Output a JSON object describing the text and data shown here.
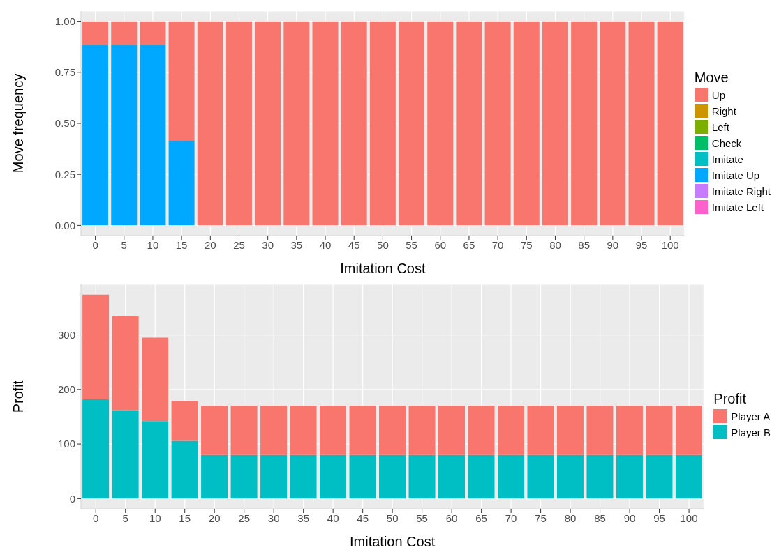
{
  "chart_data": [
    {
      "type": "bar",
      "stacked": true,
      "xlabel": "Imitation Cost",
      "ylabel": "Move frequency",
      "legend_title": "Move",
      "legend": "right",
      "grid": true,
      "categories": [
        "0",
        "5",
        "10",
        "15",
        "20",
        "25",
        "30",
        "35",
        "40",
        "45",
        "50",
        "55",
        "60",
        "65",
        "70",
        "75",
        "80",
        "85",
        "90",
        "95",
        "100"
      ],
      "ylim": [
        -0.05,
        1.05
      ],
      "yticks": [
        {
          "value": 0,
          "label": "0.00"
        },
        {
          "value": 0.25,
          "label": "0.25"
        },
        {
          "value": 0.5,
          "label": "0.50"
        },
        {
          "value": 0.75,
          "label": "0.75"
        },
        {
          "value": 1,
          "label": "1.00"
        }
      ],
      "series": [
        {
          "name": "Imitate Left",
          "color": "#ff61cc",
          "values": [
            0,
            0,
            0,
            0,
            0,
            0,
            0,
            0,
            0,
            0,
            0,
            0,
            0,
            0,
            0,
            0,
            0,
            0,
            0,
            0,
            0
          ]
        },
        {
          "name": "Imitate Right",
          "color": "#c77cff",
          "values": [
            0,
            0,
            0,
            0,
            0,
            0,
            0,
            0,
            0,
            0,
            0,
            0,
            0,
            0,
            0,
            0,
            0,
            0,
            0,
            0,
            0
          ]
        },
        {
          "name": "Imitate Up",
          "color": "#00a9ff",
          "values": [
            0.885,
            0.885,
            0.885,
            0.414,
            0,
            0,
            0,
            0,
            0,
            0,
            0,
            0,
            0,
            0,
            0,
            0,
            0,
            0,
            0,
            0,
            0
          ]
        },
        {
          "name": "Imitate",
          "color": "#00bfc4",
          "values": [
            0,
            0,
            0,
            0,
            0,
            0,
            0,
            0,
            0,
            0,
            0,
            0,
            0,
            0,
            0,
            0,
            0,
            0,
            0,
            0,
            0
          ]
        },
        {
          "name": "Check",
          "color": "#00be67",
          "values": [
            0,
            0,
            0,
            0,
            0,
            0,
            0,
            0,
            0,
            0,
            0,
            0,
            0,
            0,
            0,
            0,
            0,
            0,
            0,
            0,
            0
          ]
        },
        {
          "name": "Left",
          "color": "#7cae00",
          "values": [
            0,
            0,
            0,
            0,
            0,
            0,
            0,
            0,
            0,
            0,
            0,
            0,
            0,
            0,
            0,
            0,
            0,
            0,
            0,
            0,
            0
          ]
        },
        {
          "name": "Right",
          "color": "#cd9600",
          "values": [
            0,
            0,
            0,
            0,
            0,
            0,
            0,
            0,
            0,
            0,
            0,
            0,
            0,
            0,
            0,
            0,
            0,
            0,
            0,
            0,
            0
          ]
        },
        {
          "name": "Up",
          "color": "#f8766d",
          "values": [
            0.115,
            0.115,
            0.115,
            0.586,
            1,
            1,
            1,
            1,
            1,
            1,
            1,
            1,
            1,
            1,
            1,
            1,
            1,
            1,
            1,
            1,
            1
          ]
        }
      ]
    },
    {
      "type": "bar",
      "stacked": true,
      "xlabel": "Imitation Cost",
      "ylabel": "Profit",
      "legend_title": "Profit",
      "legend": "right",
      "grid": true,
      "categories": [
        "0",
        "5",
        "10",
        "15",
        "20",
        "25",
        "30",
        "35",
        "40",
        "45",
        "50",
        "55",
        "60",
        "65",
        "70",
        "75",
        "80",
        "85",
        "90",
        "95",
        "100"
      ],
      "ylim": [
        -18.7,
        392.7
      ],
      "yticks": [
        0,
        100,
        200,
        300
      ],
      "series": [
        {
          "name": "Player B",
          "color": "#00bfc4",
          "values": [
            182,
            162,
            142,
            106,
            80,
            80,
            80,
            80,
            80,
            80,
            80,
            80,
            80,
            80,
            80,
            80,
            80,
            80,
            80,
            80,
            80
          ]
        },
        {
          "name": "Player A",
          "color": "#f8766d",
          "values": [
            192,
            172,
            153,
            73,
            90,
            90,
            90,
            90,
            90,
            90,
            90,
            90,
            90,
            90,
            90,
            90,
            90,
            90,
            90,
            90,
            90
          ]
        }
      ]
    }
  ]
}
